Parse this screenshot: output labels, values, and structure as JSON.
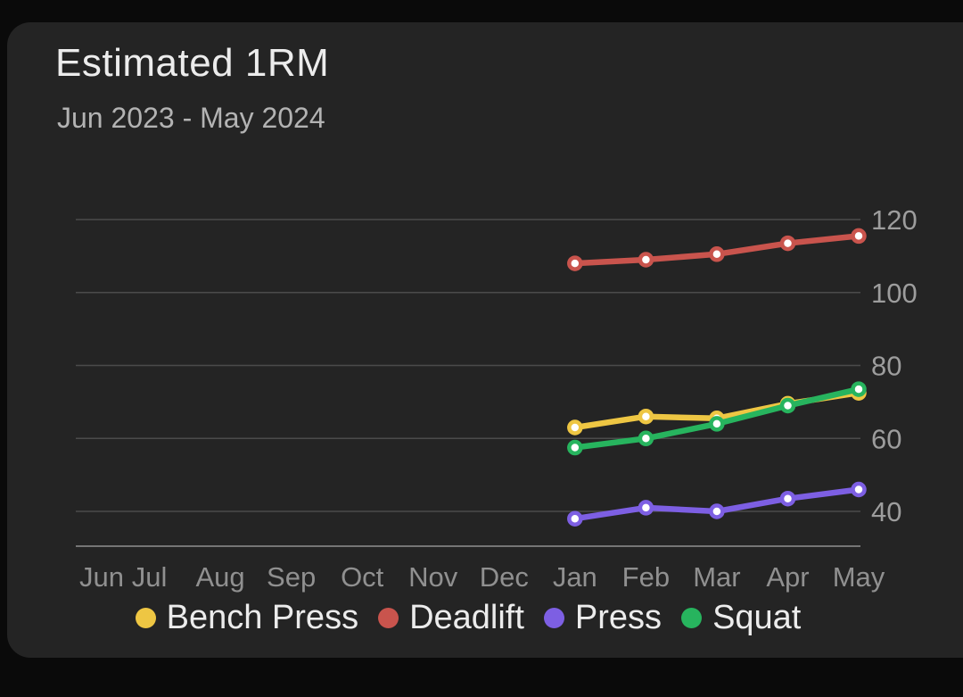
{
  "header": {
    "title": "Estimated 1RM",
    "subtitle": "Jun 2023 - May 2024"
  },
  "chart_data": {
    "type": "line",
    "title": "Estimated 1RM",
    "subtitle": "Jun 2023 - May 2024",
    "categories": [
      "Jun",
      "Jul",
      "Aug",
      "Sep",
      "Oct",
      "Nov",
      "Dec",
      "Jan",
      "Feb",
      "Mar",
      "Apr",
      "May"
    ],
    "y_ticks": [
      120,
      100,
      80,
      60,
      40
    ],
    "ylim": [
      30,
      125
    ],
    "grid": true,
    "legend_position": "bottom",
    "colors": {
      "bench_press": "#eec643",
      "deadlift": "#c9544d",
      "press": "#7d5fe3",
      "squat": "#27b45e",
      "gridline": "#4b4b4b",
      "axis": "#757575",
      "tick_text": "#9d9d9d"
    },
    "series": [
      {
        "name": "Bench Press",
        "color": "#eec643",
        "values": [
          null,
          null,
          null,
          null,
          null,
          null,
          null,
          63,
          66,
          65.5,
          69.5,
          72.5
        ]
      },
      {
        "name": "Deadlift",
        "color": "#c9544d",
        "values": [
          null,
          null,
          null,
          null,
          null,
          null,
          null,
          108,
          109,
          110.5,
          113.5,
          115.5
        ]
      },
      {
        "name": "Press",
        "color": "#7d5fe3",
        "values": [
          null,
          null,
          null,
          null,
          null,
          null,
          null,
          38,
          41,
          40,
          43.5,
          46
        ]
      },
      {
        "name": "Squat",
        "color": "#27b45e",
        "values": [
          null,
          null,
          null,
          null,
          null,
          null,
          null,
          57.5,
          60,
          64,
          69,
          73.5
        ]
      }
    ]
  }
}
